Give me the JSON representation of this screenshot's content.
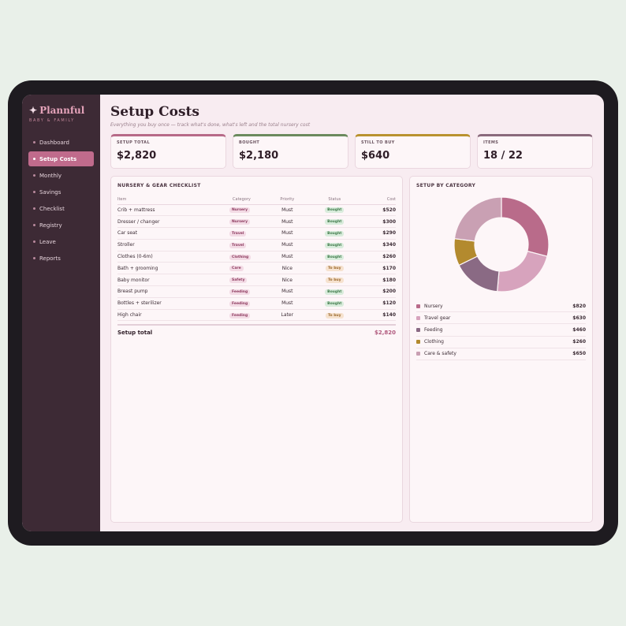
{
  "app": {
    "brand": "Plannful",
    "brand_sub": "BABY & FAMILY",
    "brand_icon": "sparkle-icon"
  },
  "nav": [
    {
      "label": "Dashboard",
      "active": false
    },
    {
      "label": "Setup Costs",
      "active": true
    },
    {
      "label": "Monthly",
      "active": false
    },
    {
      "label": "Savings",
      "active": false
    },
    {
      "label": "Checklist",
      "active": false
    },
    {
      "label": "Registry",
      "active": false
    },
    {
      "label": "Leave",
      "active": false
    },
    {
      "label": "Reports",
      "active": false
    }
  ],
  "page": {
    "title": "Setup Costs",
    "subtitle": "Everything you buy once — track what's done, what's left and the total nursery cost"
  },
  "stats": [
    {
      "label": "SETUP TOTAL",
      "value": "$2,820",
      "color": "#b76a88"
    },
    {
      "label": "BOUGHT",
      "value": "$2,180",
      "color": "#6b8a5e"
    },
    {
      "label": "STILL TO BUY",
      "value": "$640",
      "color": "#b9922f"
    },
    {
      "label": "ITEMS",
      "value": "18 / 22",
      "color": "#8a6a7c"
    }
  ],
  "checklist": {
    "title": "NURSERY & GEAR CHECKLIST",
    "columns": [
      "Item",
      "Category",
      "Priority",
      "Status",
      "Cost"
    ],
    "rows": [
      {
        "item": "Crib + mattress",
        "category": "Nursery",
        "priority": "Must",
        "status": "Bought",
        "cost": "$520"
      },
      {
        "item": "Dresser / changer",
        "category": "Nursery",
        "priority": "Must",
        "status": "Bought",
        "cost": "$300"
      },
      {
        "item": "Car seat",
        "category": "Travel",
        "priority": "Must",
        "status": "Bought",
        "cost": "$290"
      },
      {
        "item": "Stroller",
        "category": "Travel",
        "priority": "Must",
        "status": "Bought",
        "cost": "$340"
      },
      {
        "item": "Clothes (0-6m)",
        "category": "Clothing",
        "priority": "Must",
        "status": "Bought",
        "cost": "$260"
      },
      {
        "item": "Bath + grooming",
        "category": "Care",
        "priority": "Nice",
        "status": "To buy",
        "cost": "$170"
      },
      {
        "item": "Baby monitor",
        "category": "Safety",
        "priority": "Nice",
        "status": "To buy",
        "cost": "$180"
      },
      {
        "item": "Breast pump",
        "category": "Feeding",
        "priority": "Must",
        "status": "Bought",
        "cost": "$200"
      },
      {
        "item": "Bottles + sterilizer",
        "category": "Feeding",
        "priority": "Must",
        "status": "Bought",
        "cost": "$120"
      },
      {
        "item": "High chair",
        "category": "Feeding",
        "priority": "Later",
        "status": "To buy",
        "cost": "$140"
      }
    ],
    "total_label": "Setup total",
    "total_value": "$2,820"
  },
  "by_category": {
    "title": "SETUP BY CATEGORY",
    "chart_data": {
      "type": "pie",
      "categories": [
        "Nursery",
        "Travel gear",
        "Feeding",
        "Clothing",
        "Care & safety"
      ],
      "values": [
        820,
        630,
        460,
        260,
        650
      ],
      "colors": [
        "#b96b8a",
        "#d7a3bd",
        "#8a6a84",
        "#b38a2e",
        "#c9a0b3"
      ],
      "value_labels": [
        "$820",
        "$630",
        "$460",
        "$260",
        "$650"
      ]
    }
  }
}
